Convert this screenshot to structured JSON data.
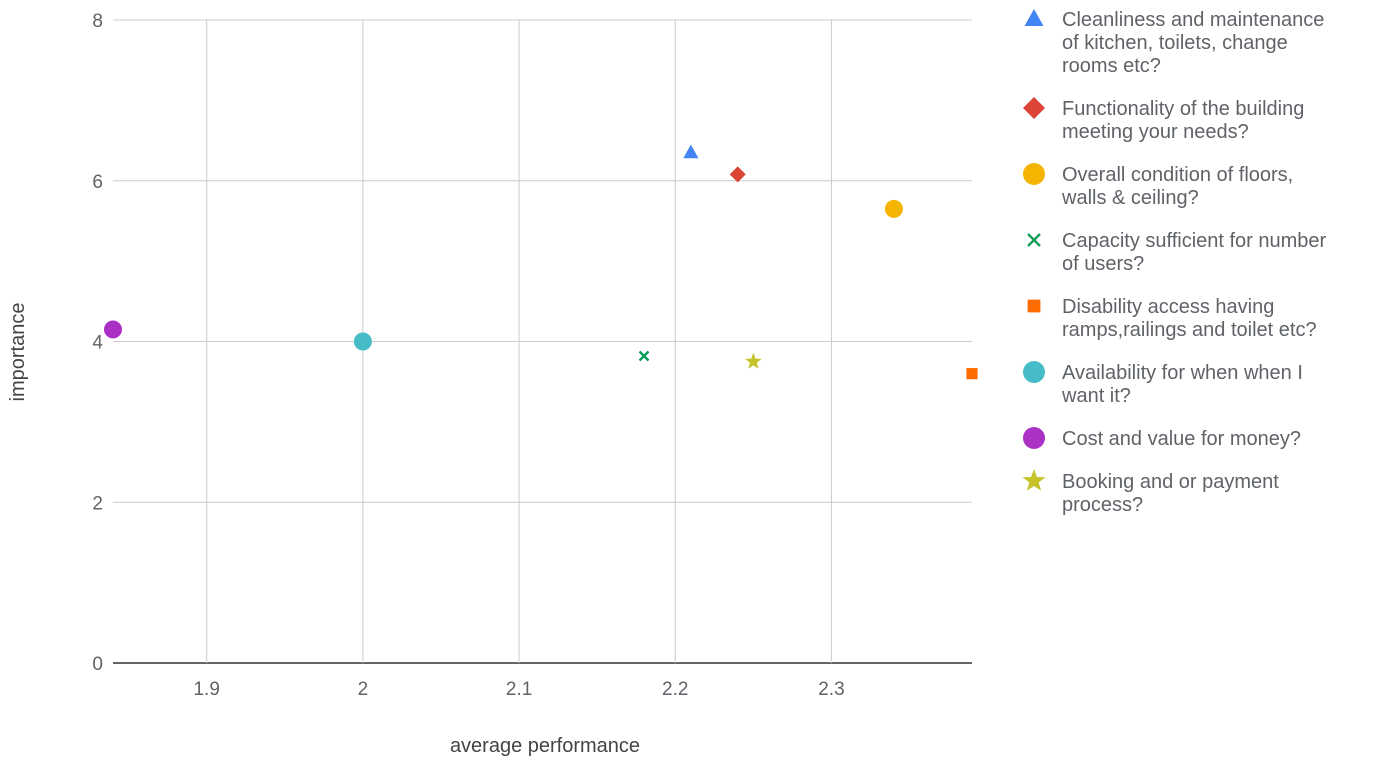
{
  "chart_data": {
    "type": "scatter",
    "title": "",
    "xlabel": "average performance",
    "ylabel": "importance",
    "xlim": [
      1.84,
      2.39
    ],
    "ylim": [
      0,
      8
    ],
    "x_ticks": [
      "1.9",
      "2",
      "2.1",
      "2.2",
      "2.3"
    ],
    "y_ticks": [
      "0",
      "2",
      "4",
      "6",
      "8"
    ],
    "grid": true,
    "legend_position": "right",
    "series": [
      {
        "name": "Cleanliness and maintenance of kitchen, toilets, change rooms etc?",
        "lines": [
          "Cleanliness and maintenance",
          "of kitchen, toilets, change",
          "rooms etc?"
        ],
        "marker": "triangle",
        "color": "#4285f4",
        "x": 2.21,
        "y": 6.35
      },
      {
        "name": "Functionality of the building meeting your needs?",
        "lines": [
          "Functionality of the building",
          "meeting your needs?"
        ],
        "marker": "diamond",
        "color": "#db4437",
        "x": 2.24,
        "y": 6.08
      },
      {
        "name": "Overall condition of floors, walls & ceiling?",
        "lines": [
          "Overall condition of floors,",
          "walls & ceiling?"
        ],
        "marker": "circle",
        "color": "#f4b400",
        "x": 2.34,
        "y": 5.65
      },
      {
        "name": "Capacity sufficient for number of users?",
        "lines": [
          "Capacity sufficient for number",
          "of users?"
        ],
        "marker": "x",
        "color": "#0f9d58",
        "x": 2.18,
        "y": 3.82
      },
      {
        "name": "Disability access having ramps,railings and toilet etc?",
        "lines": [
          "Disability access having",
          "ramps,railings and toilet etc?"
        ],
        "marker": "square",
        "color": "#ff6d00",
        "x": 2.39,
        "y": 3.6
      },
      {
        "name": "Availability for when when I want it?",
        "lines": [
          "Availability for when when I",
          "want it?"
        ],
        "marker": "circle",
        "color": "#46bdc6",
        "x": 2.0,
        "y": 4.0
      },
      {
        "name": "Cost and value for money?",
        "lines": [
          "Cost and value for money?"
        ],
        "marker": "circle",
        "color": "#ab30c4",
        "x": 1.84,
        "y": 4.15
      },
      {
        "name": "Booking and or payment process?",
        "lines": [
          "Booking and or payment",
          "process?"
        ],
        "marker": "star",
        "color": "#c6c22a",
        "x": 2.25,
        "y": 3.75
      }
    ]
  }
}
